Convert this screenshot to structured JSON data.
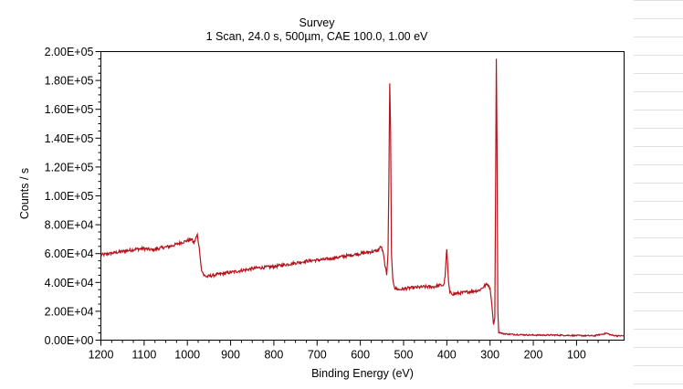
{
  "chart_data": {
    "type": "line",
    "title": "Survey",
    "subtitle": "1 Scan,  24.0 s,  500µm,  CAE 100.0,  1.00 eV",
    "xlabel": "Binding Energy (eV)",
    "ylabel": "Counts / s",
    "xlim": [
      1200,
      -10
    ],
    "ylim": [
      0,
      200000
    ],
    "x_reversed": true,
    "grid": false,
    "legend": "none",
    "x_ticks": [
      {
        "value": 1200,
        "label": "1200"
      },
      {
        "value": 1100,
        "label": "1100"
      },
      {
        "value": 1000,
        "label": "1000"
      },
      {
        "value": 900,
        "label": "900"
      },
      {
        "value": 800,
        "label": "800"
      },
      {
        "value": 700,
        "label": "700"
      },
      {
        "value": 600,
        "label": "600"
      },
      {
        "value": 500,
        "label": "500"
      },
      {
        "value": 400,
        "label": "400"
      },
      {
        "value": 300,
        "label": "300"
      },
      {
        "value": 200,
        "label": "200"
      },
      {
        "value": 100,
        "label": "100"
      }
    ],
    "y_ticks": [
      {
        "value": 0,
        "label": "0.00E+00"
      },
      {
        "value": 20000,
        "label": "2.00E+04"
      },
      {
        "value": 40000,
        "label": "4.00E+04"
      },
      {
        "value": 60000,
        "label": "6.00E+04"
      },
      {
        "value": 80000,
        "label": "8.00E+04"
      },
      {
        "value": 100000,
        "label": "1.00E+05"
      },
      {
        "value": 120000,
        "label": "1.20E+05"
      },
      {
        "value": 140000,
        "label": "1.40E+05"
      },
      {
        "value": 160000,
        "label": "1.60E+05"
      },
      {
        "value": 180000,
        "label": "1.80E+05"
      },
      {
        "value": 200000,
        "label": "2.00E+05"
      }
    ],
    "series": [
      {
        "color": "#b5121b",
        "points": [
          [
            1200,
            59000
          ],
          [
            1180,
            60000
          ],
          [
            1160,
            61000
          ],
          [
            1140,
            62000
          ],
          [
            1120,
            63000
          ],
          [
            1100,
            63500
          ],
          [
            1080,
            62500
          ],
          [
            1060,
            64000
          ],
          [
            1040,
            65000
          ],
          [
            1020,
            67000
          ],
          [
            1000,
            69000
          ],
          [
            990,
            70000
          ],
          [
            985,
            67000
          ],
          [
            980,
            71000
          ],
          [
            977,
            73000
          ],
          [
            973,
            65000
          ],
          [
            968,
            50000
          ],
          [
            962,
            45000
          ],
          [
            955,
            44000
          ],
          [
            940,
            45000
          ],
          [
            920,
            46000
          ],
          [
            900,
            47000
          ],
          [
            880,
            48000
          ],
          [
            860,
            49000
          ],
          [
            840,
            50000
          ],
          [
            820,
            50500
          ],
          [
            800,
            51000
          ],
          [
            780,
            52000
          ],
          [
            760,
            53000
          ],
          [
            740,
            54000
          ],
          [
            720,
            55000
          ],
          [
            700,
            55500
          ],
          [
            680,
            56000
          ],
          [
            660,
            57000
          ],
          [
            640,
            58000
          ],
          [
            620,
            59000
          ],
          [
            600,
            60000
          ],
          [
            580,
            61000
          ],
          [
            560,
            62000
          ],
          [
            552,
            65000
          ],
          [
            547,
            60000
          ],
          [
            543,
            52000
          ],
          [
            539,
            45000
          ],
          [
            536,
            60000
          ],
          [
            534,
            110000
          ],
          [
            532,
            178000
          ],
          [
            530,
            145000
          ],
          [
            528,
            60000
          ],
          [
            525,
            42000
          ],
          [
            520,
            36000
          ],
          [
            510,
            35000
          ],
          [
            490,
            36000
          ],
          [
            470,
            36500
          ],
          [
            450,
            37000
          ],
          [
            430,
            37000
          ],
          [
            415,
            38000
          ],
          [
            407,
            38000
          ],
          [
            404,
            44000
          ],
          [
            402,
            55000
          ],
          [
            400,
            63000
          ],
          [
            398,
            52000
          ],
          [
            396,
            40000
          ],
          [
            393,
            33000
          ],
          [
            385,
            32000
          ],
          [
            360,
            33000
          ],
          [
            340,
            34000
          ],
          [
            325,
            34500
          ],
          [
            315,
            37000
          ],
          [
            306,
            39000
          ],
          [
            300,
            36000
          ],
          [
            296,
            25000
          ],
          [
            292,
            11000
          ],
          [
            289,
            15000
          ],
          [
            287,
            115000
          ],
          [
            285.5,
            195000
          ],
          [
            284,
            140000
          ],
          [
            282,
            20000
          ],
          [
            280,
            5500
          ],
          [
            270,
            4500
          ],
          [
            250,
            4000
          ],
          [
            200,
            3500
          ],
          [
            150,
            3500
          ],
          [
            100,
            3200
          ],
          [
            60,
            3000
          ],
          [
            30,
            4800
          ],
          [
            20,
            3500
          ],
          [
            5,
            3000
          ],
          [
            -10,
            3000
          ]
        ]
      }
    ]
  }
}
